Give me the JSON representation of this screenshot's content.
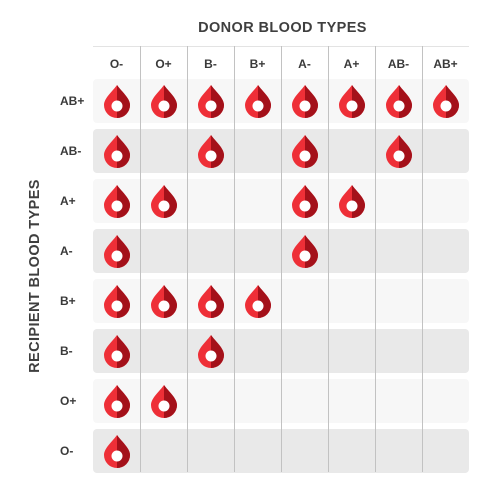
{
  "titles": {
    "donor": "DONOR BLOOD TYPES",
    "recipient": "RECIPIENT BLOOD TYPES"
  },
  "colors": {
    "drop_light": "#ee2f37",
    "drop_dark": "#a4111a",
    "drop_center": "#ffffff",
    "row_gray": "#e9e9e9",
    "row_light": "#f7f7f7"
  },
  "icon": "blood-drop-icon",
  "donor_types": [
    "O-",
    "O+",
    "B-",
    "B+",
    "A-",
    "A+",
    "AB-",
    "AB+"
  ],
  "recipient_rows": [
    {
      "label": "AB+",
      "compatible": [
        "O-",
        "O+",
        "B-",
        "B+",
        "A-",
        "A+",
        "AB-",
        "AB+"
      ]
    },
    {
      "label": "AB-",
      "compatible": [
        "O-",
        "B-",
        "A-",
        "AB-"
      ]
    },
    {
      "label": "A+",
      "compatible": [
        "O-",
        "O+",
        "A-",
        "A+"
      ]
    },
    {
      "label": "A-",
      "compatible": [
        "O-",
        "A-"
      ]
    },
    {
      "label": "B+",
      "compatible": [
        "O-",
        "O+",
        "B-",
        "B+"
      ]
    },
    {
      "label": "B-",
      "compatible": [
        "O-",
        "B-"
      ]
    },
    {
      "label": "O+",
      "compatible": [
        "O-",
        "O+"
      ]
    },
    {
      "label": "O-",
      "compatible": [
        "O-"
      ]
    }
  ]
}
